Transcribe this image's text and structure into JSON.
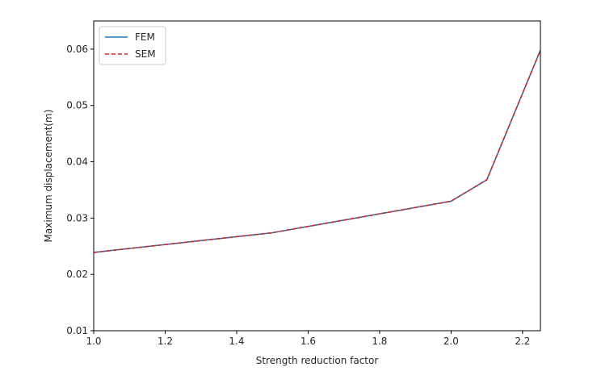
{
  "chart_data": {
    "type": "line",
    "title": "",
    "xlabel": "Strength reduction factor",
    "ylabel": "Maximum displacement(m)",
    "xlim": [
      1.0,
      2.25
    ],
    "ylim": [
      0.01,
      0.065
    ],
    "x_ticks": [
      1.0,
      1.2,
      1.4,
      1.6,
      1.8,
      2.0,
      2.2
    ],
    "x_tick_labels": [
      "1.0",
      "1.2",
      "1.4",
      "1.6",
      "1.8",
      "2.0",
      "2.2"
    ],
    "y_ticks": [
      0.01,
      0.02,
      0.03,
      0.04,
      0.05,
      0.06
    ],
    "y_tick_labels": [
      "0.01",
      "0.02",
      "0.03",
      "0.04",
      "0.05",
      "0.06"
    ],
    "grid": false,
    "legend_position": "top-left",
    "series": [
      {
        "name": "FEM",
        "color": "#1f77b4",
        "line_style": "solid",
        "x": [
          1.0,
          1.5,
          2.0,
          2.1,
          2.25
        ],
        "y": [
          0.0239,
          0.0274,
          0.033,
          0.0368,
          0.0598
        ]
      },
      {
        "name": "SEM",
        "color": "#d62728",
        "line_style": "dashed",
        "x": [
          1.0,
          1.5,
          2.0,
          2.1,
          2.25
        ],
        "y": [
          0.0239,
          0.0274,
          0.033,
          0.0368,
          0.0598
        ]
      }
    ]
  }
}
